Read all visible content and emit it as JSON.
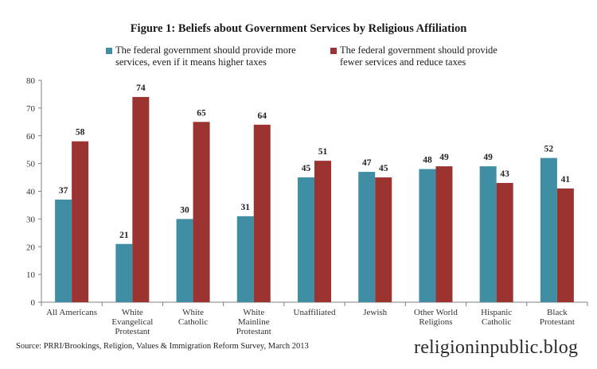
{
  "chart_data": {
    "type": "bar",
    "title": "Figure 1: Beliefs about Government Services by Religious Affiliation",
    "xlabel": "",
    "ylabel": "",
    "ylim": [
      0,
      80
    ],
    "yticks": [
      0,
      10,
      20,
      30,
      40,
      50,
      60,
      70,
      80
    ],
    "grid": false,
    "legend_position": "top",
    "categories": [
      "All Americans",
      "White\nEvangelical\nProtestant",
      "White\nCatholic",
      "White\nMainline\nProtestant",
      "Unaffiliated",
      "Jewish",
      "Other World\nReligions",
      "Hispanic\nCatholic",
      "Black\nProtestant"
    ],
    "series": [
      {
        "name": "The federal government should provide more\nservices, even if it means higher taxes",
        "color": "#3f8ea3",
        "values": [
          37,
          21,
          30,
          31,
          45,
          47,
          48,
          49,
          52
        ]
      },
      {
        "name": "The federal government should provide\nfewer services and reduce taxes",
        "color": "#9b3331",
        "values": [
          58,
          74,
          65,
          64,
          51,
          45,
          49,
          43,
          41
        ]
      }
    ]
  },
  "footer": {
    "source": "Source: PRRI/Brookings, Religion, Values & Immigration Reform Survey, March 2013",
    "brand": "religioninpublic.blog"
  }
}
